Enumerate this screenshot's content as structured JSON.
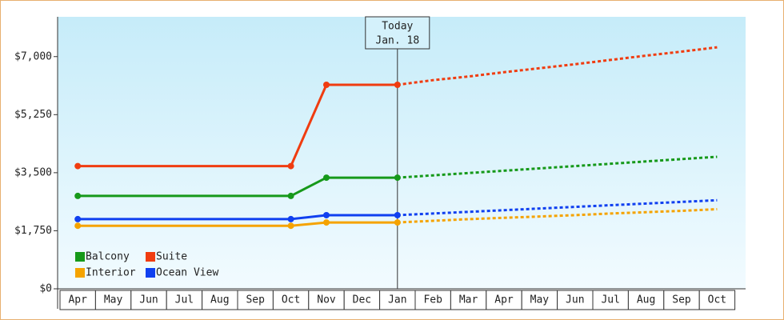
{
  "chart_data": {
    "type": "line",
    "categories": [
      "Apr",
      "May",
      "Jun",
      "Jul",
      "Aug",
      "Sep",
      "Oct",
      "Nov",
      "Dec",
      "Jan",
      "Feb",
      "Mar",
      "Apr",
      "May",
      "Jun",
      "Jul",
      "Aug",
      "Sep",
      "Oct"
    ],
    "series": [
      {
        "name": "Balcony",
        "color": "#16991a",
        "values": [
          2800,
          2800,
          2800,
          2800,
          2800,
          2800,
          2800,
          3350,
          3350,
          3350,
          3420,
          3490,
          3560,
          3630,
          3700,
          3770,
          3840,
          3910,
          3980
        ]
      },
      {
        "name": "Suite",
        "color": "#f03c10",
        "values": [
          3700,
          3700,
          3700,
          3700,
          3700,
          3700,
          3700,
          6150,
          6150,
          6150,
          6290,
          6400,
          6530,
          6650,
          6770,
          6900,
          7030,
          7150,
          7280
        ]
      },
      {
        "name": "Interior",
        "color": "#f5a300",
        "values": [
          1900,
          1900,
          1900,
          1900,
          1900,
          1900,
          1900,
          2000,
          2000,
          2000,
          2050,
          2100,
          2140,
          2180,
          2220,
          2270,
          2310,
          2350,
          2400
        ]
      },
      {
        "name": "Ocean View",
        "color": "#1040f0",
        "values": [
          2100,
          2100,
          2100,
          2100,
          2100,
          2100,
          2100,
          2220,
          2220,
          2220,
          2270,
          2320,
          2370,
          2420,
          2470,
          2520,
          2570,
          2620,
          2670
        ]
      }
    ],
    "annotation": {
      "lines": [
        "Today",
        "Jan. 18"
      ],
      "category": "Jan"
    },
    "ylim": [
      0,
      8200
    ],
    "yticks": [
      {
        "value": 0,
        "label": "$0"
      },
      {
        "value": 1750,
        "label": "$1,750"
      },
      {
        "value": 3500,
        "label": "$3,500"
      },
      {
        "value": 5250,
        "label": "$5,250"
      },
      {
        "value": 7000,
        "label": "$7,000"
      }
    ],
    "legend": "lower-left"
  }
}
